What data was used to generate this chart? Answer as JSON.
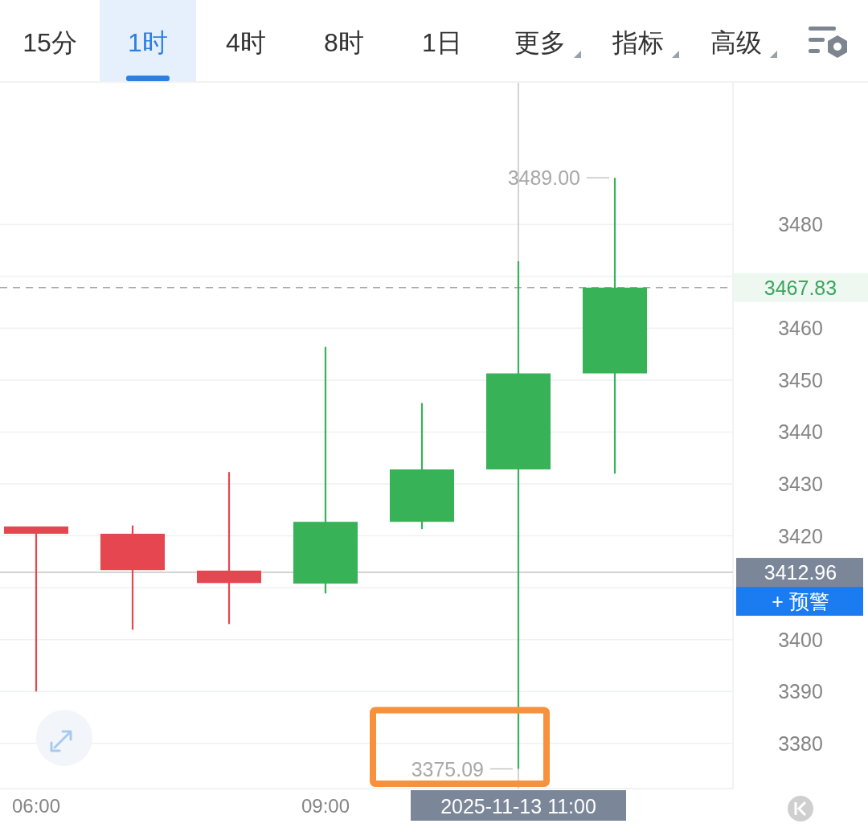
{
  "chart_data": {
    "type": "candlestick",
    "x": [
      6,
      7,
      8,
      9,
      10,
      11,
      12
    ],
    "ohlc": [
      [
        3421.8,
        3421.8,
        3390.0,
        3420.4
      ],
      [
        3420.4,
        3422.0,
        3401.9,
        3413.4
      ],
      [
        3413.3,
        3432.3,
        3403.0,
        3410.9
      ],
      [
        3410.8,
        3456.4,
        3408.9,
        3422.7
      ],
      [
        3422.7,
        3445.6,
        3421.3,
        3432.8
      ],
      [
        3432.8,
        3472.9,
        3375.09,
        3451.3
      ],
      [
        3451.3,
        3489.0,
        3432.0,
        3467.83
      ]
    ],
    "colors": [
      "#e5464f",
      "#e5464f",
      "#e5464f",
      "#37b257",
      "#37b257",
      "#37b257",
      "#37b257"
    ],
    "xlim": [
      5.625,
      13.225
    ],
    "xticks": [
      {
        "value": 6,
        "label": "06:00"
      },
      {
        "value": 9,
        "label": "09:00"
      }
    ],
    "ylim": [
      3371.3,
      3507.3
    ],
    "yticks": [
      3380,
      3390,
      3400,
      {
        "value": 3410,
        "label": null
      },
      3420,
      3430,
      3440,
      3450,
      3460,
      {
        "value": 3470,
        "label": null
      },
      3480
    ],
    "grid": "y",
    "ref_lines": [
      {
        "axis": "y",
        "value": 3467.83,
        "label": "3467.83",
        "color": "#a6a6a6",
        "line_style": "dashed"
      },
      {
        "axis": "y",
        "value": 3412.96,
        "label": "3412.96",
        "color": "#c4c4c4",
        "line_style": "solid"
      },
      {
        "axis": "x",
        "value": 11,
        "label": "2025-11-13 11:00",
        "color": "#c4c4c4",
        "line_style": "solid"
      }
    ],
    "annotations": [
      "15分",
      "1时",
      "4时",
      "8时",
      "1日",
      "更多",
      "指标",
      "高级",
      "+ 预警",
      {
        "text": "3489.00",
        "x": 12,
        "y": 3489.0
      },
      {
        "text": "3375.09",
        "x": 11,
        "y": 3375.09
      }
    ]
  }
}
